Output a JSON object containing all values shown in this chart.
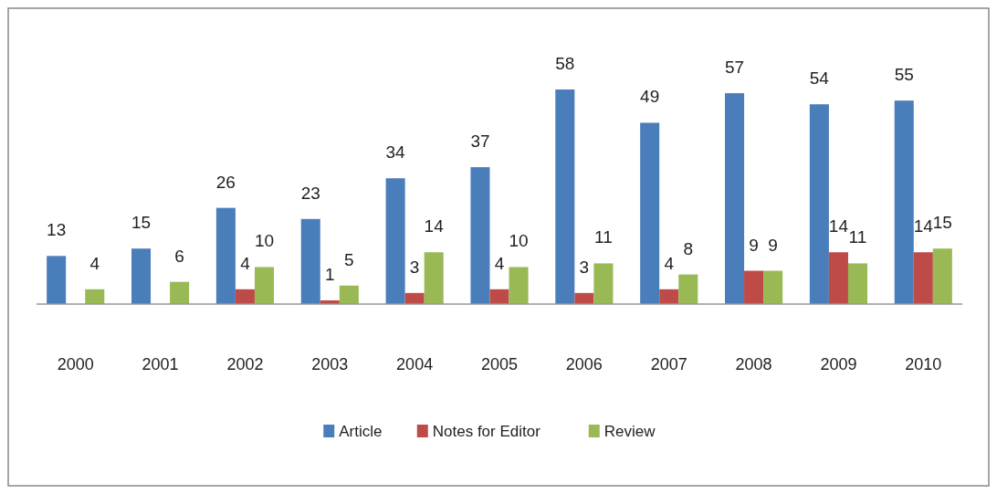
{
  "chart_data": {
    "type": "bar",
    "categories": [
      "2000",
      "2001",
      "2002",
      "2003",
      "2004",
      "2005",
      "2006",
      "2007",
      "2008",
      "2009",
      "2010"
    ],
    "series": [
      {
        "name": "Article",
        "color": "#4a7ebb",
        "values": [
          13,
          15,
          26,
          23,
          34,
          37,
          58,
          49,
          57,
          54,
          55
        ]
      },
      {
        "name": "Notes for Editor",
        "color": "#be4b48",
        "values": [
          null,
          null,
          4,
          1,
          3,
          4,
          3,
          4,
          9,
          14,
          14
        ]
      },
      {
        "name": "Review",
        "color": "#98b954",
        "values": [
          4,
          6,
          10,
          5,
          14,
          10,
          11,
          8,
          9,
          11,
          15
        ]
      }
    ],
    "data_labels": true,
    "legend": "bottom",
    "grid": false
  }
}
